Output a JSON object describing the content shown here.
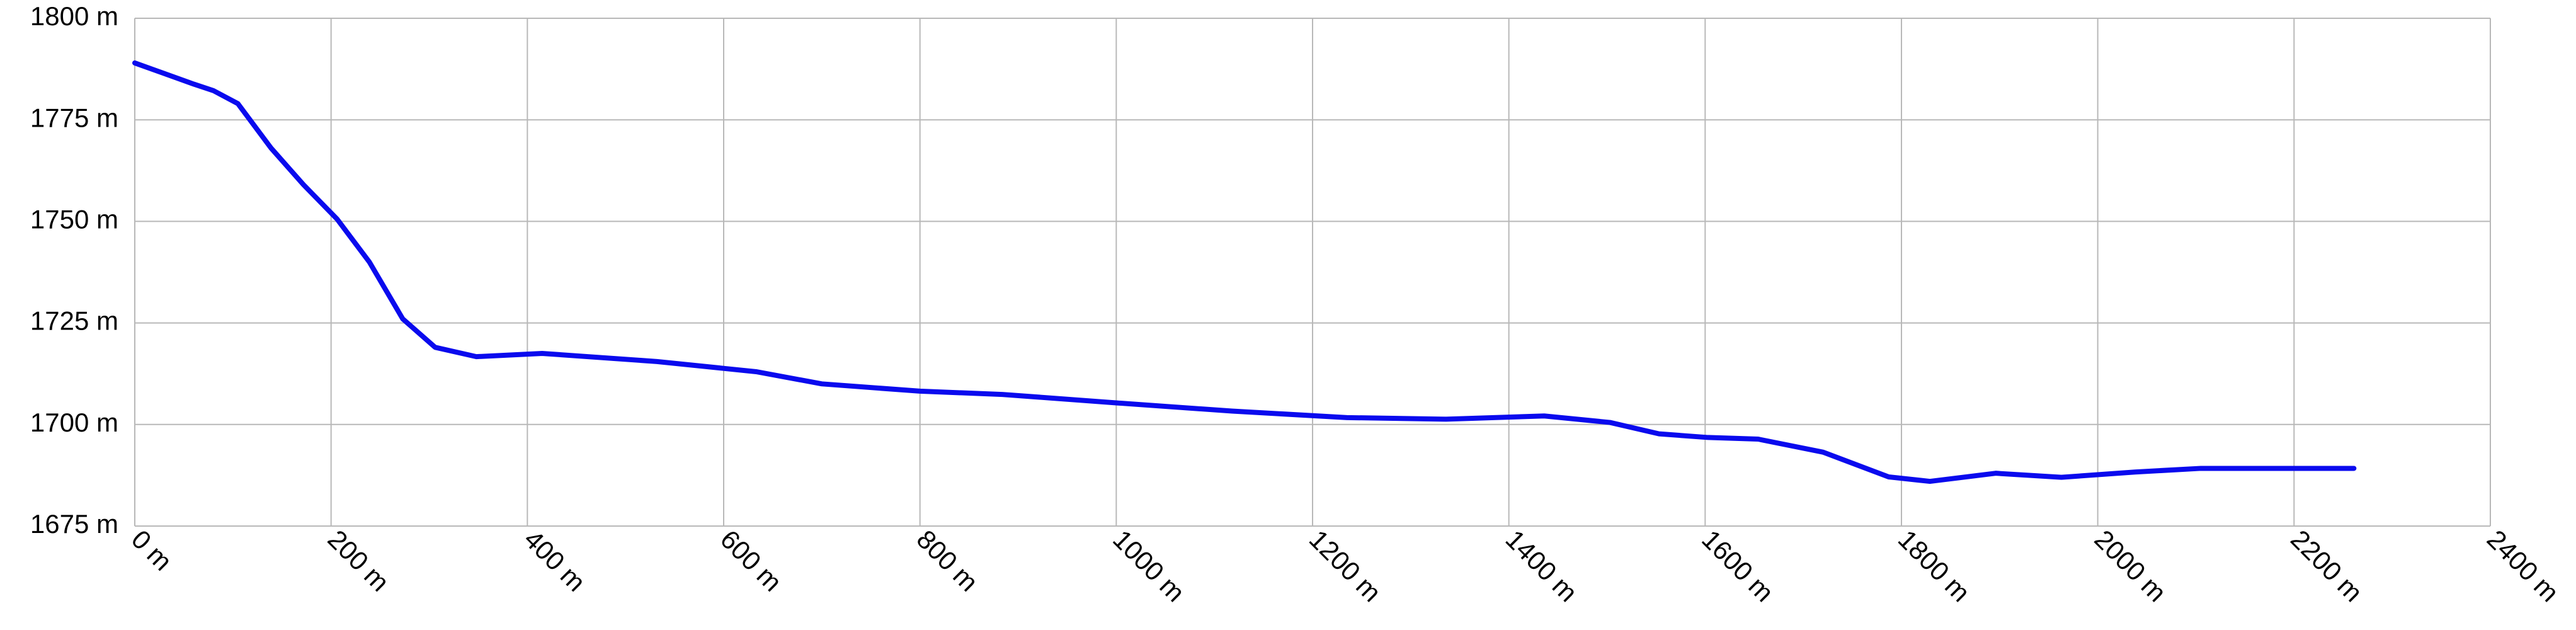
{
  "chart_data": {
    "type": "line",
    "color": "#0a0aee",
    "grid": true,
    "x": [
      0,
      60,
      80,
      105,
      139,
      172,
      206,
      239,
      273,
      306,
      348,
      415,
      532,
      633,
      700,
      800,
      884,
      1001,
      1118,
      1235,
      1336,
      1436,
      1503,
      1553,
      1603,
      1654,
      1720,
      1787,
      1829,
      1896,
      1963,
      2038,
      2105,
      2261
    ],
    "values": [
      1789,
      1783.8,
      1782.2,
      1779,
      1768,
      1759,
      1750.6,
      1740,
      1726,
      1719,
      1716.7,
      1717.5,
      1715.5,
      1713,
      1710,
      1708.2,
      1707.4,
      1705.3,
      1703.3,
      1701.7,
      1701.3,
      1702.1,
      1700.5,
      1697.7,
      1696.8,
      1696.4,
      1693.2,
      1687.1,
      1686,
      1688,
      1687,
      1688.3,
      1689.2,
      1689.2
    ],
    "xlim": [
      0,
      2400
    ],
    "xticks": [
      {
        "value": 0,
        "label": "0 m"
      },
      {
        "value": 200,
        "label": "200 m"
      },
      {
        "value": 400,
        "label": "400 m"
      },
      {
        "value": 600,
        "label": "600 m"
      },
      {
        "value": 800,
        "label": "800 m"
      },
      {
        "value": 1000,
        "label": "1000 m"
      },
      {
        "value": 1200,
        "label": "1200 m"
      },
      {
        "value": 1400,
        "label": "1400 m"
      },
      {
        "value": 1600,
        "label": "1600 m"
      },
      {
        "value": 1800,
        "label": "1800 m"
      },
      {
        "value": 2000,
        "label": "2000 m"
      },
      {
        "value": 2200,
        "label": "2200 m"
      },
      {
        "value": 2400,
        "label": "2400 m"
      }
    ],
    "ylim": [
      1675,
      1800
    ],
    "yticks": [
      {
        "value": 1675,
        "label": "1675 m"
      },
      {
        "value": 1700,
        "label": "1700 m"
      },
      {
        "value": 1725,
        "label": "1725 m"
      },
      {
        "value": 1750,
        "label": "1750 m"
      },
      {
        "value": 1775,
        "label": "1775 m"
      },
      {
        "value": 1800,
        "label": "1800 m"
      }
    ]
  }
}
